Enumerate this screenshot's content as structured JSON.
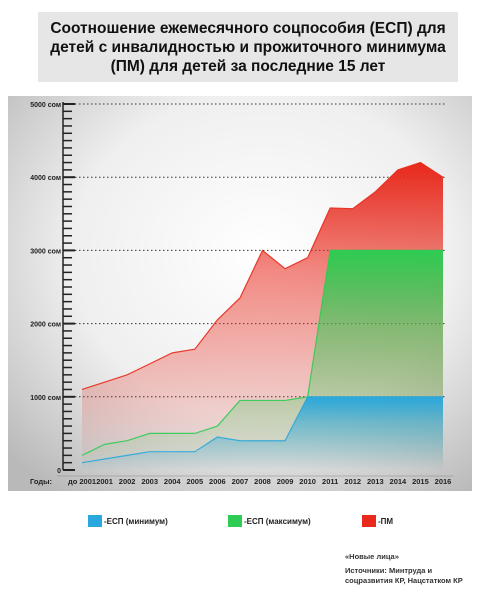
{
  "title": "Соотношение ежемесячного соцпособия (ЕСП) для детей с инвалидностью и прожиточного минимума (ПМ) для детей за последние 15 лет",
  "chart_data": {
    "type": "area",
    "title": "Соотношение ежемесячного соцпособия (ЕСП) для детей с инвалидностью и прожиточного минимума (ПМ) для детей за последние 15 лет",
    "x_prefix": "Годы:",
    "categories": [
      "до 2001",
      "2001",
      "2002",
      "2003",
      "2004",
      "2005",
      "2006",
      "2007",
      "2008",
      "2009",
      "2010",
      "2011",
      "2012",
      "2013",
      "2014",
      "2015",
      "2016"
    ],
    "y_ticks": [
      "0",
      "1000 сом",
      "2000 сом",
      "3000 сом",
      "4000 сом",
      "5000 сом"
    ],
    "ylim": [
      0,
      5000
    ],
    "grid": true,
    "series": [
      {
        "name": "-ЕСП (минимум)",
        "color": "#2aa7dc",
        "values": [
          100,
          150,
          200,
          250,
          250,
          250,
          450,
          400,
          400,
          400,
          1000,
          1000,
          1000,
          1000,
          1000,
          1000,
          1000
        ]
      },
      {
        "name": "-ЕСП (максимум)",
        "color": "#2ecc52",
        "values": [
          200,
          350,
          400,
          500,
          500,
          500,
          600,
          950,
          950,
          950,
          1000,
          3000,
          3000,
          3000,
          3000,
          3000,
          3000
        ]
      },
      {
        "name": "-ПМ",
        "color": "#e8291c",
        "values": [
          1100,
          1200,
          1300,
          1450,
          1600,
          1650,
          2050,
          2350,
          3000,
          2750,
          2900,
          3580,
          3570,
          3800,
          4100,
          4200,
          4000
        ]
      }
    ]
  },
  "source": {
    "publisher": "«Новые лица»",
    "text": "Источники: Минтруда и соцразвития КР, Нацстатком КР"
  }
}
